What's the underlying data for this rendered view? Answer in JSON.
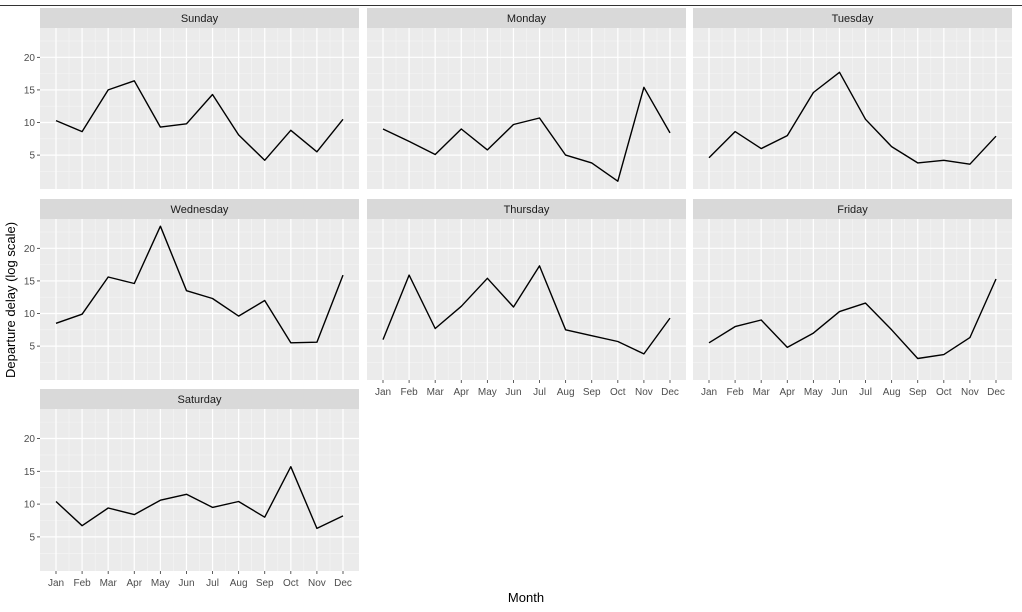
{
  "chart_data": {
    "type": "line",
    "xlabel": "Month",
    "ylabel": "Departure delay (log scale)",
    "x_ticks": [
      "Jan",
      "Feb",
      "Mar",
      "Apr",
      "May",
      "Jun",
      "Jul",
      "Aug",
      "Sep",
      "Oct",
      "Nov",
      "Dec"
    ],
    "y_ticks": [
      5,
      10,
      15,
      20
    ],
    "ylim": [
      -0.2,
      24.5
    ],
    "grid": true,
    "line_color": "#000000",
    "panel_background": "#ebebeb",
    "strip_background": "#d9d9d9",
    "facets": [
      {
        "name": "Sunday",
        "values": [
          10.3,
          8.6,
          15.0,
          16.4,
          9.3,
          9.8,
          14.3,
          8.1,
          4.2,
          8.8,
          5.5,
          10.5
        ]
      },
      {
        "name": "Monday",
        "values": [
          9.0,
          7.1,
          5.1,
          9.0,
          5.8,
          9.7,
          10.7,
          5.0,
          3.8,
          1.0,
          15.4,
          8.4
        ]
      },
      {
        "name": "Tuesday",
        "values": [
          4.6,
          8.6,
          6.0,
          8.0,
          14.6,
          17.7,
          10.5,
          6.3,
          3.8,
          4.2,
          3.6,
          7.9
        ]
      },
      {
        "name": "Wednesday",
        "values": [
          8.5,
          9.9,
          15.6,
          14.6,
          23.4,
          13.5,
          12.3,
          9.6,
          12.0,
          5.5,
          5.6,
          15.9
        ]
      },
      {
        "name": "Thursday",
        "values": [
          6.0,
          15.9,
          7.7,
          11.1,
          15.4,
          11.0,
          17.3,
          7.5,
          6.6,
          5.7,
          3.8,
          9.3
        ]
      },
      {
        "name": "Friday",
        "values": [
          5.5,
          8.0,
          9.0,
          4.8,
          7.0,
          10.3,
          11.6,
          7.5,
          3.1,
          3.7,
          6.3,
          15.3
        ]
      },
      {
        "name": "Saturday",
        "values": [
          10.4,
          6.7,
          9.4,
          8.4,
          10.6,
          11.5,
          9.5,
          10.4,
          8.0,
          15.7,
          6.3,
          8.2
        ]
      }
    ]
  }
}
